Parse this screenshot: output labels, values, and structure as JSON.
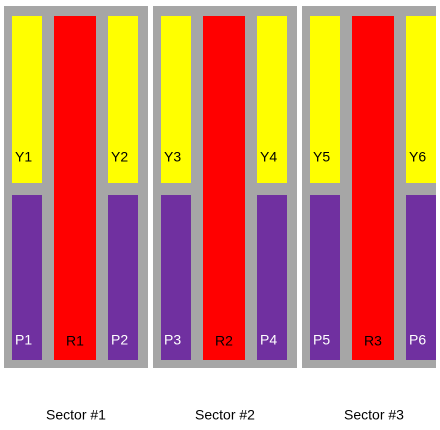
{
  "sectors": [
    {
      "label": "Sector #1",
      "yellow": [
        "Y1",
        "Y2"
      ],
      "red": "R1",
      "purple": [
        "P1",
        "P2"
      ]
    },
    {
      "label": "Sector #2",
      "yellow": [
        "Y3",
        "Y4"
      ],
      "red": "R2",
      "purple": [
        "P3",
        "P4"
      ]
    },
    {
      "label": "Sector #3",
      "yellow": [
        "Y5",
        "Y6"
      ],
      "red": "R3",
      "purple": [
        "P5",
        "P6"
      ]
    }
  ]
}
